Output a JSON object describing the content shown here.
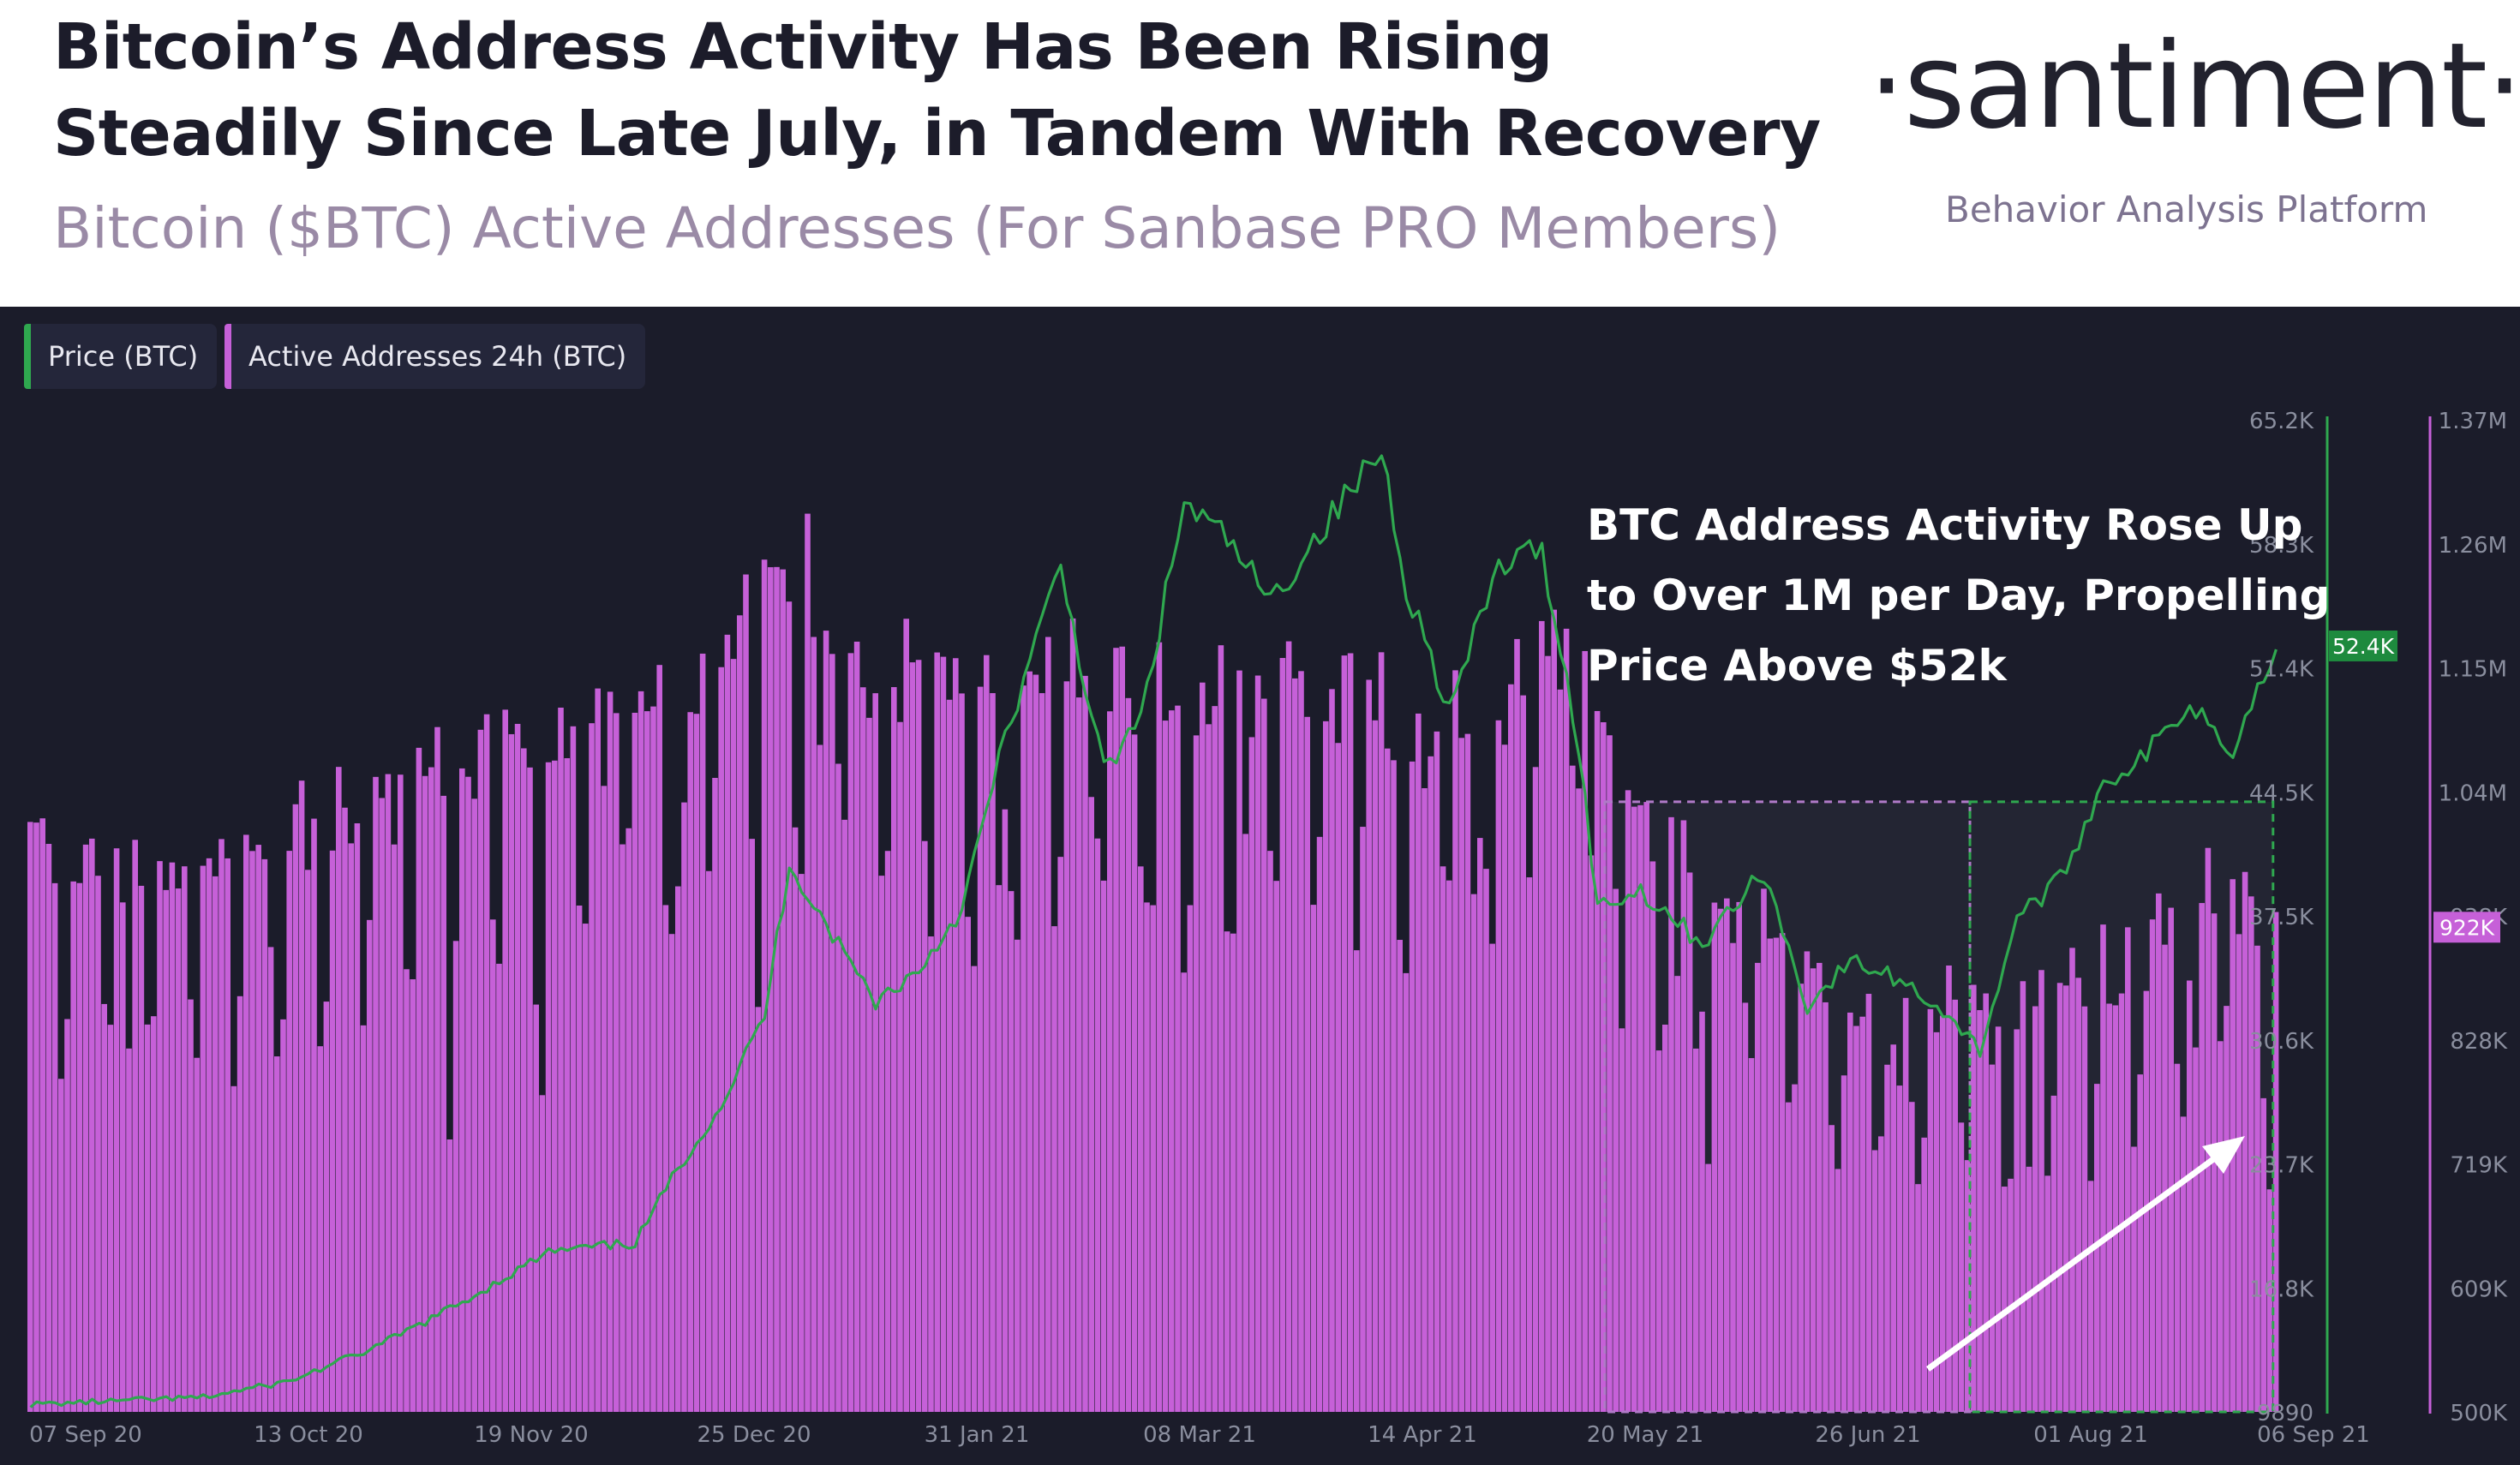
{
  "header": {
    "title_line1": "Bitcoin’s Address Activity Has Been Rising",
    "title_line2": "Steadily Since Late July, in Tandem With Recovery",
    "subtitle": "Bitcoin ($BTC) Active Addresses (For Sanbase PRO Members)",
    "brand": "·santiment·",
    "tagline": "Behavior Analysis Platform"
  },
  "legend": {
    "price_label": "Price (BTC)",
    "addresses_label": "Active Addresses 24h (BTC)"
  },
  "annotation": {
    "line1": "BTC Address Activity Rose Up",
    "line2": "to Over 1M per Day, Propelling",
    "line3": "Price Above $52k"
  },
  "colors": {
    "background": "#1b1c2a",
    "price": "#2fa84f",
    "addresses": "#c660d8",
    "price_badge": "#1e8a3e",
    "addr_badge": "#c660d8",
    "annotation_text": "#ffffff",
    "arrow": "#ffffff"
  },
  "chart_data": {
    "type": "bar",
    "title": "",
    "x_tick_labels": [
      "07 Sep 20",
      "13 Oct 20",
      "19 Nov 20",
      "25 Dec 20",
      "31 Jan 21",
      "08 Mar 21",
      "14 Apr 21",
      "20 May 21",
      "26 Jun 21",
      "01 Aug 21",
      "06 Sep 21"
    ],
    "x_range": [
      "2020-09-07",
      "2021-09-06"
    ],
    "price_axis": {
      "ticks": [
        "65.2K",
        "58.3K",
        "51.4K",
        "44.5K",
        "37.5K",
        "30.6K",
        "23.7K",
        "16.8K",
        "9890"
      ],
      "ylim": [
        9890,
        65200
      ],
      "current_label": "52.4K",
      "current_value": 52400
    },
    "addresses_axis": {
      "ticks": [
        "1.37M",
        "1.26M",
        "1.15M",
        "1.04M",
        "938K",
        "828K",
        "719K",
        "609K",
        "500K"
      ],
      "ylim": [
        500000,
        1370000
      ],
      "current_label": "922K",
      "current_value": 922000
    },
    "series": [
      {
        "name": "Price (BTC)",
        "type": "line",
        "points": [
          [
            "2020-09-07",
            10300
          ],
          [
            "2020-09-21",
            10500
          ],
          [
            "2020-10-05",
            10700
          ],
          [
            "2020-10-19",
            11600
          ],
          [
            "2020-11-02",
            13500
          ],
          [
            "2020-11-16",
            16000
          ],
          [
            "2020-11-30",
            18800
          ],
          [
            "2020-12-14",
            19300
          ],
          [
            "2020-12-21",
            23500
          ],
          [
            "2020-12-28",
            27000
          ],
          [
            "2021-01-04",
            32000
          ],
          [
            "2021-01-08",
            40500
          ],
          [
            "2021-01-15",
            36500
          ],
          [
            "2021-01-22",
            32800
          ],
          [
            "2021-01-29",
            34500
          ],
          [
            "2021-02-05",
            38000
          ],
          [
            "2021-02-12",
            47500
          ],
          [
            "2021-02-21",
            57000
          ],
          [
            "2021-02-28",
            45500
          ],
          [
            "2021-03-06",
            48500
          ],
          [
            "2021-03-13",
            60500
          ],
          [
            "2021-03-20",
            58500
          ],
          [
            "2021-03-27",
            55000
          ],
          [
            "2021-04-03",
            58500
          ],
          [
            "2021-04-14",
            63500
          ],
          [
            "2021-04-18",
            56000
          ],
          [
            "2021-04-25",
            49000
          ],
          [
            "2021-05-03",
            57000
          ],
          [
            "2021-05-10",
            58000
          ],
          [
            "2021-05-16",
            47000
          ],
          [
            "2021-05-19",
            38000
          ],
          [
            "2021-05-26",
            39000
          ],
          [
            "2021-06-05",
            36000
          ],
          [
            "2021-06-15",
            40000
          ],
          [
            "2021-06-22",
            32500
          ],
          [
            "2021-06-29",
            35000
          ],
          [
            "2021-07-07",
            34000
          ],
          [
            "2021-07-15",
            32000
          ],
          [
            "2021-07-20",
            30000
          ],
          [
            "2021-07-26",
            37500
          ],
          [
            "2021-08-02",
            39500
          ],
          [
            "2021-08-09",
            45000
          ],
          [
            "2021-08-16",
            46500
          ],
          [
            "2021-08-23",
            49500
          ],
          [
            "2021-08-30",
            47000
          ],
          [
            "2021-09-06",
            52400
          ]
        ]
      },
      {
        "name": "Active Addresses 24h (BTC)",
        "type": "bar",
        "points": [
          [
            "2020-09-07",
            1000000
          ],
          [
            "2020-09-21",
            965000
          ],
          [
            "2020-10-05",
            975000
          ],
          [
            "2020-10-19",
            1010000
          ],
          [
            "2020-11-02",
            1040000
          ],
          [
            "2020-11-16",
            1060000
          ],
          [
            "2020-11-30",
            1080000
          ],
          [
            "2020-12-14",
            1120000
          ],
          [
            "2020-12-28",
            1180000
          ],
          [
            "2021-01-08",
            1260000
          ],
          [
            "2021-01-15",
            1190000
          ],
          [
            "2021-01-22",
            1150000
          ],
          [
            "2021-02-05",
            1120000
          ],
          [
            "2021-02-21",
            1165000
          ],
          [
            "2021-03-06",
            1140000
          ],
          [
            "2021-03-20",
            1130000
          ],
          [
            "2021-04-03",
            1150000
          ],
          [
            "2021-04-18",
            1100000
          ],
          [
            "2021-05-03",
            1110000
          ],
          [
            "2021-05-10",
            1200000
          ],
          [
            "2021-05-19",
            1130000
          ],
          [
            "2021-05-26",
            995000
          ],
          [
            "2021-06-05",
            975000
          ],
          [
            "2021-06-15",
            940000
          ],
          [
            "2021-06-22",
            900000
          ],
          [
            "2021-06-29",
            855000
          ],
          [
            "2021-07-07",
            880000
          ],
          [
            "2021-07-15",
            860000
          ],
          [
            "2021-07-22",
            845000
          ],
          [
            "2021-08-02",
            880000
          ],
          [
            "2021-08-09",
            890000
          ],
          [
            "2021-08-16",
            910000
          ],
          [
            "2021-08-23",
            930000
          ],
          [
            "2021-08-30",
            960000
          ],
          [
            "2021-09-06",
            922000
          ]
        ]
      }
    ],
    "highlight_regions": [
      {
        "from": "2021-05-20",
        "to": "2021-07-18"
      },
      {
        "from": "2021-07-18",
        "to": "2021-09-05"
      }
    ],
    "grid": false,
    "legend_position": "top-left"
  }
}
